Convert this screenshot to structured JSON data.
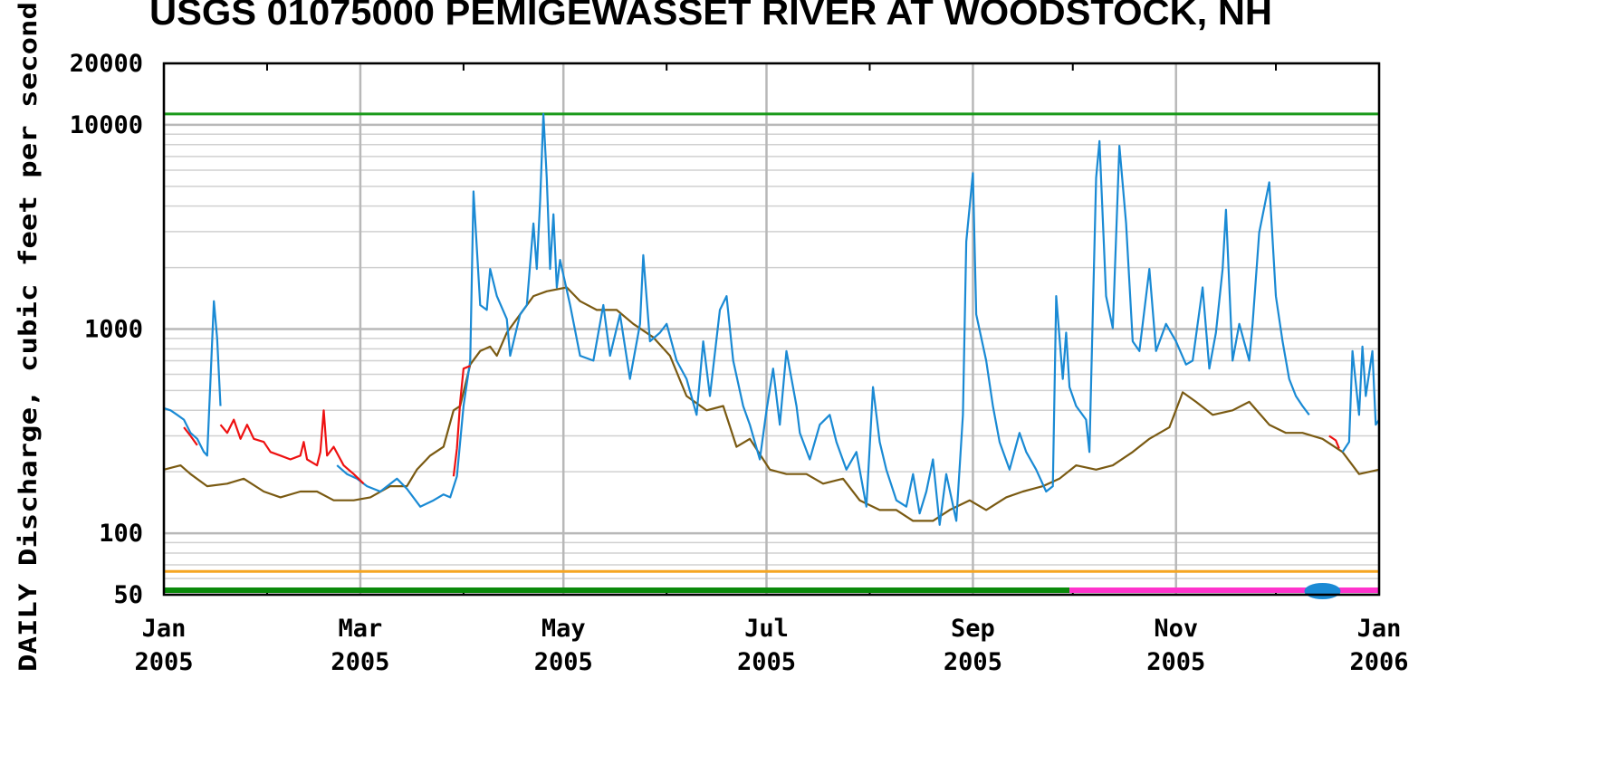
{
  "chart_data": {
    "type": "line",
    "title": "USGS 01075000 PEMIGEWASSET RIVER AT WOODSTOCK, NH",
    "y_label": "DAILY Discharge, cubic feet per second",
    "log_y": true,
    "grid": true,
    "ylim": [
      50,
      20000
    ],
    "yticks": [
      50,
      100,
      1000,
      10000,
      20000
    ],
    "yminor": [
      60,
      70,
      80,
      90,
      200,
      300,
      400,
      500,
      600,
      700,
      800,
      900,
      2000,
      3000,
      4000,
      5000,
      6000,
      7000,
      8000,
      9000
    ],
    "xlim": [
      0,
      365
    ],
    "xticks": [
      {
        "value": 0,
        "label": "Jan\n2005"
      },
      {
        "value": 59,
        "label": "Mar\n2005"
      },
      {
        "value": 120,
        "label": "May\n2005"
      },
      {
        "value": 181,
        "label": "Jul\n2005"
      },
      {
        "value": 243,
        "label": "Sep\n2005"
      },
      {
        "value": 304,
        "label": "Nov\n2005"
      },
      {
        "value": 365,
        "label": "Jan\n2006"
      }
    ],
    "xminor": [
      31,
      90,
      151,
      212,
      273,
      334
    ],
    "hlines": [
      {
        "value": 11300,
        "color": "#1a9a1a"
      },
      {
        "value": 65,
        "color": "#f5a623"
      }
    ],
    "status_bars": [
      {
        "start": 0,
        "end": 272,
        "color": "#0a8a0a"
      },
      {
        "start": 272,
        "end": 365,
        "color": "#ff33cc"
      }
    ],
    "markers": [
      {
        "x": 348,
        "color": "#1a8ad4"
      }
    ],
    "series": [
      {
        "color": "#7a5a12",
        "x": [
          0,
          5,
          8,
          13,
          19,
          24,
          30,
          35,
          41,
          46,
          51,
          57,
          62,
          68,
          73,
          76,
          80,
          84,
          87,
          89,
          92,
          95,
          98,
          100,
          103,
          107,
          111,
          115,
          121,
          125,
          130,
          136,
          141,
          147,
          152,
          157,
          163,
          168,
          172,
          176,
          182,
          187,
          193,
          198,
          204,
          209,
          215,
          220,
          225,
          231,
          236,
          242,
          247,
          253,
          258,
          264,
          269,
          274,
          280,
          285,
          291,
          296,
          302,
          306,
          310,
          315,
          321,
          326,
          332,
          337,
          342,
          348,
          354,
          359,
          365
        ],
        "values": [
          205,
          215,
          195,
          170,
          175,
          185,
          160,
          150,
          160,
          160,
          145,
          145,
          150,
          170,
          170,
          205,
          240,
          265,
          400,
          420,
          670,
          780,
          820,
          740,
          960,
          1180,
          1450,
          1530,
          1600,
          1370,
          1240,
          1240,
          1060,
          910,
          740,
          470,
          400,
          420,
          265,
          290,
          205,
          195,
          195,
          175,
          185,
          145,
          130,
          130,
          115,
          115,
          130,
          145,
          130,
          150,
          160,
          170,
          185,
          215,
          205,
          215,
          250,
          290,
          330,
          490,
          440,
          380,
          400,
          440,
          340,
          310,
          310,
          290,
          250,
          195,
          205
        ]
      },
      {
        "color": "#1a8ad4",
        "x": [
          0,
          2,
          4,
          6,
          8,
          10,
          12,
          13,
          14,
          15,
          16,
          17,
          34,
          52,
          55,
          58,
          61,
          65,
          70,
          73,
          77,
          81,
          84,
          86,
          88,
          90,
          92,
          93,
          95,
          97,
          98,
          100,
          103,
          104,
          107,
          109,
          111,
          112,
          113,
          114,
          115,
          116,
          117,
          118,
          119,
          122,
          125,
          129,
          132,
          134,
          137,
          140,
          143,
          144,
          146,
          149,
          151,
          154,
          157,
          160,
          162,
          164,
          167,
          169,
          171,
          174,
          176,
          179,
          181,
          183,
          185,
          187,
          190,
          191,
          194,
          197,
          200,
          202,
          205,
          208,
          211,
          213,
          215,
          217,
          220,
          223,
          225,
          227,
          229,
          231,
          233,
          235,
          238,
          240,
          241,
          243,
          244,
          247,
          249,
          251,
          254,
          257,
          259,
          262,
          265,
          267,
          268,
          270,
          271,
          272,
          274,
          277,
          278,
          280,
          281,
          283,
          285,
          287,
          289,
          291,
          293,
          296,
          298,
          301,
          304,
          307,
          309,
          312,
          314,
          316,
          318,
          319,
          321,
          323,
          326,
          327,
          329,
          332,
          334,
          336,
          338,
          340,
          342,
          344,
          349,
          354,
          356,
          357,
          359,
          360,
          361,
          363,
          364,
          365
        ],
        "values": [
          410,
          400,
          380,
          360,
          310,
          290,
          250,
          240,
          570,
          1370,
          900,
          420,
          null,
          215,
          195,
          185,
          170,
          160,
          185,
          165,
          135,
          145,
          155,
          150,
          190,
          420,
          700,
          4720,
          1310,
          1240,
          1970,
          1450,
          1120,
          740,
          1180,
          1310,
          3290,
          1970,
          4260,
          11300,
          5500,
          1970,
          3650,
          1600,
          2180,
          1310,
          740,
          700,
          1310,
          740,
          1180,
          570,
          1060,
          2300,
          870,
          960,
          1060,
          700,
          570,
          380,
          870,
          470,
          1240,
          1450,
          700,
          420,
          340,
          230,
          400,
          640,
          340,
          780,
          420,
          310,
          230,
          340,
          380,
          280,
          205,
          250,
          135,
          520,
          280,
          205,
          145,
          135,
          195,
          125,
          160,
          230,
          110,
          195,
          115,
          380,
          2680,
          5800,
          1180,
          700,
          420,
          280,
          205,
          310,
          250,
          205,
          160,
          170,
          1450,
          570,
          960,
          520,
          420,
          360,
          250,
          5500,
          8320,
          1450,
          1010,
          7890,
          3290,
          870,
          780,
          1970,
          780,
          1060,
          870,
          670,
          700,
          1600,
          640,
          960,
          1970,
          3840,
          700,
          1060,
          700,
          1060,
          2970,
          5230,
          1450,
          870,
          570,
          470,
          420,
          380,
          null,
          250,
          280,
          780,
          380,
          820,
          470,
          780,
          340,
          360
        ]
      },
      {
        "color": "#ee1111",
        "x": [
          6,
          8,
          10,
          11,
          17,
          19,
          21,
          23,
          25,
          27,
          30,
          32,
          35,
          38,
          41,
          42,
          43,
          46,
          47,
          48,
          49,
          51,
          54,
          57,
          60,
          70,
          87,
          88,
          89,
          90,
          92,
          200,
          350,
          352,
          353
        ],
        "values": [
          330,
          300,
          270,
          null,
          340,
          310,
          360,
          290,
          340,
          290,
          280,
          250,
          240,
          230,
          240,
          280,
          230,
          215,
          250,
          400,
          240,
          265,
          215,
          195,
          175,
          null,
          190,
          260,
          440,
          640,
          660,
          null,
          300,
          285,
          260
        ]
      }
    ]
  }
}
